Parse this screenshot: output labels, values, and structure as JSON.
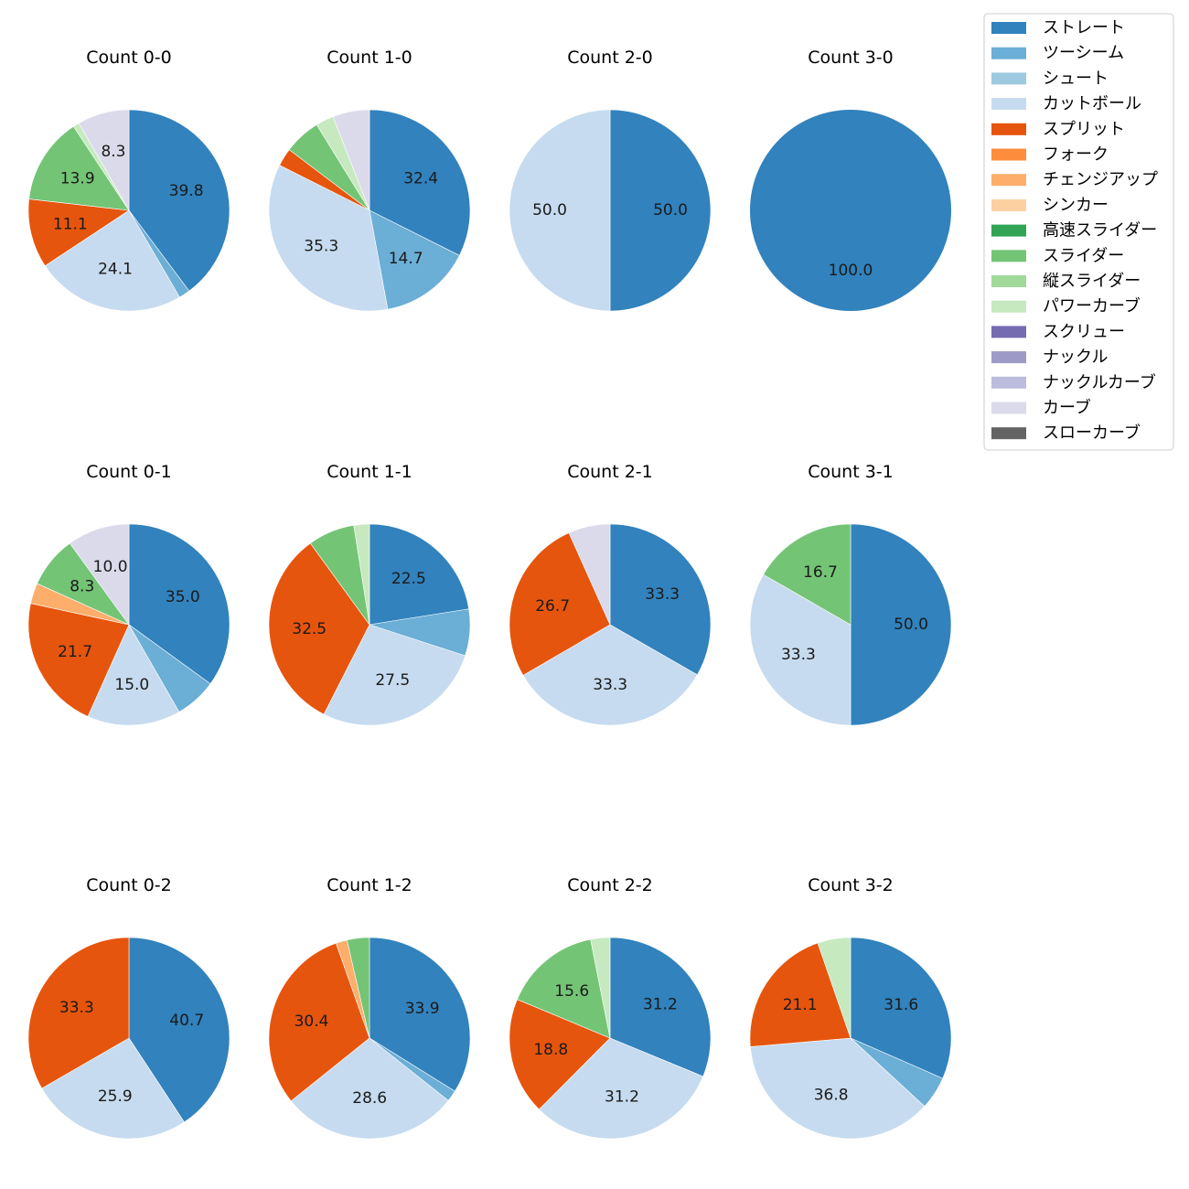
{
  "chart_data": {
    "type": "pie",
    "legend": {
      "placement": "top-right",
      "entries": [
        {
          "name": "ストレート",
          "color": "#3182bd"
        },
        {
          "name": "ツーシーム",
          "color": "#6baed6"
        },
        {
          "name": "シュート",
          "color": "#9ecae1"
        },
        {
          "name": "カットボール",
          "color": "#c6dbef"
        },
        {
          "name": "スプリット",
          "color": "#e6550d"
        },
        {
          "name": "フォーク",
          "color": "#fd8d3c"
        },
        {
          "name": "チェンジアップ",
          "color": "#fdae6b"
        },
        {
          "name": "シンカー",
          "color": "#fdd0a2"
        },
        {
          "name": "高速スライダー",
          "color": "#31a354"
        },
        {
          "name": "スライダー",
          "color": "#74c476"
        },
        {
          "name": "縦スライダー",
          "color": "#a1d99b"
        },
        {
          "name": "パワーカーブ",
          "color": "#c7e9c0"
        },
        {
          "name": "スクリュー",
          "color": "#756bb1"
        },
        {
          "name": "ナックル",
          "color": "#9e9ac8"
        },
        {
          "name": "ナックルカーブ",
          "color": "#bcbddc"
        },
        {
          "name": "カーブ",
          "color": "#dadaeb"
        },
        {
          "name": "スローカーブ",
          "color": "#636363"
        }
      ]
    },
    "pies": [
      {
        "title": "Count 0-0",
        "row": 0,
        "col": 0,
        "slices": [
          {
            "pitch": "ストレート",
            "value": 39.8,
            "label": "39.8"
          },
          {
            "pitch": "ツーシーム",
            "value": 1.8,
            "label": ""
          },
          {
            "pitch": "カットボール",
            "value": 24.1,
            "label": "24.1"
          },
          {
            "pitch": "スプリット",
            "value": 11.1,
            "label": "11.1"
          },
          {
            "pitch": "スライダー",
            "value": 13.9,
            "label": "13.9"
          },
          {
            "pitch": "パワーカーブ",
            "value": 1.0,
            "label": ""
          },
          {
            "pitch": "カーブ",
            "value": 8.3,
            "label": "8.3"
          }
        ]
      },
      {
        "title": "Count 1-0",
        "row": 0,
        "col": 1,
        "slices": [
          {
            "pitch": "ストレート",
            "value": 32.4,
            "label": "32.4"
          },
          {
            "pitch": "ツーシーム",
            "value": 14.7,
            "label": "14.7"
          },
          {
            "pitch": "カットボール",
            "value": 35.3,
            "label": "35.3"
          },
          {
            "pitch": "スプリット",
            "value": 2.9,
            "label": ""
          },
          {
            "pitch": "スライダー",
            "value": 5.9,
            "label": ""
          },
          {
            "pitch": "パワーカーブ",
            "value": 2.9,
            "label": ""
          },
          {
            "pitch": "カーブ",
            "value": 5.9,
            "label": ""
          }
        ]
      },
      {
        "title": "Count 2-0",
        "row": 0,
        "col": 2,
        "slices": [
          {
            "pitch": "ストレート",
            "value": 50.0,
            "label": "50.0"
          },
          {
            "pitch": "カットボール",
            "value": 50.0,
            "label": "50.0"
          }
        ]
      },
      {
        "title": "Count 3-0",
        "row": 0,
        "col": 3,
        "slices": [
          {
            "pitch": "ストレート",
            "value": 100.0,
            "label": "100.0"
          }
        ]
      },
      {
        "title": "Count 0-1",
        "row": 1,
        "col": 0,
        "slices": [
          {
            "pitch": "ストレート",
            "value": 35.0,
            "label": "35.0"
          },
          {
            "pitch": "ツーシーム",
            "value": 6.7,
            "label": ""
          },
          {
            "pitch": "カットボール",
            "value": 15.0,
            "label": "15.0"
          },
          {
            "pitch": "スプリット",
            "value": 21.7,
            "label": "21.7"
          },
          {
            "pitch": "チェンジアップ",
            "value": 3.3,
            "label": ""
          },
          {
            "pitch": "スライダー",
            "value": 8.3,
            "label": "8.3"
          },
          {
            "pitch": "カーブ",
            "value": 10.0,
            "label": "10.0"
          }
        ]
      },
      {
        "title": "Count 1-1",
        "row": 1,
        "col": 1,
        "slices": [
          {
            "pitch": "ストレート",
            "value": 22.5,
            "label": "22.5"
          },
          {
            "pitch": "ツーシーム",
            "value": 7.5,
            "label": ""
          },
          {
            "pitch": "カットボール",
            "value": 27.5,
            "label": "27.5"
          },
          {
            "pitch": "スプリット",
            "value": 32.5,
            "label": "32.5"
          },
          {
            "pitch": "スライダー",
            "value": 7.5,
            "label": ""
          },
          {
            "pitch": "パワーカーブ",
            "value": 2.5,
            "label": ""
          }
        ]
      },
      {
        "title": "Count 2-1",
        "row": 1,
        "col": 2,
        "slices": [
          {
            "pitch": "ストレート",
            "value": 33.3,
            "label": "33.3"
          },
          {
            "pitch": "カットボール",
            "value": 33.3,
            "label": "33.3"
          },
          {
            "pitch": "スプリット",
            "value": 26.7,
            "label": "26.7"
          },
          {
            "pitch": "カーブ",
            "value": 6.7,
            "label": ""
          }
        ]
      },
      {
        "title": "Count 3-1",
        "row": 1,
        "col": 3,
        "slices": [
          {
            "pitch": "ストレート",
            "value": 50.0,
            "label": "50.0"
          },
          {
            "pitch": "カットボール",
            "value": 33.3,
            "label": "33.3"
          },
          {
            "pitch": "スライダー",
            "value": 16.7,
            "label": "16.7"
          }
        ]
      },
      {
        "title": "Count 0-2",
        "row": 2,
        "col": 0,
        "slices": [
          {
            "pitch": "ストレート",
            "value": 40.7,
            "label": "40.7"
          },
          {
            "pitch": "カットボール",
            "value": 25.9,
            "label": "25.9"
          },
          {
            "pitch": "スプリット",
            "value": 33.3,
            "label": "33.3"
          }
        ]
      },
      {
        "title": "Count 1-2",
        "row": 2,
        "col": 1,
        "slices": [
          {
            "pitch": "ストレート",
            "value": 33.9,
            "label": "33.9"
          },
          {
            "pitch": "ツーシーム",
            "value": 1.8,
            "label": ""
          },
          {
            "pitch": "カットボール",
            "value": 28.6,
            "label": "28.6"
          },
          {
            "pitch": "スプリット",
            "value": 30.4,
            "label": "30.4"
          },
          {
            "pitch": "チェンジアップ",
            "value": 1.8,
            "label": ""
          },
          {
            "pitch": "スライダー",
            "value": 3.6,
            "label": ""
          }
        ]
      },
      {
        "title": "Count 2-2",
        "row": 2,
        "col": 2,
        "slices": [
          {
            "pitch": "ストレート",
            "value": 31.2,
            "label": "31.2"
          },
          {
            "pitch": "カットボール",
            "value": 31.2,
            "label": "31.2"
          },
          {
            "pitch": "スプリット",
            "value": 18.8,
            "label": "18.8"
          },
          {
            "pitch": "スライダー",
            "value": 15.6,
            "label": "15.6"
          },
          {
            "pitch": "パワーカーブ",
            "value": 3.1,
            "label": ""
          }
        ]
      },
      {
        "title": "Count 3-2",
        "row": 2,
        "col": 3,
        "slices": [
          {
            "pitch": "ストレート",
            "value": 31.6,
            "label": "31.6"
          },
          {
            "pitch": "ツーシーム",
            "value": 5.3,
            "label": ""
          },
          {
            "pitch": "カットボール",
            "value": 36.8,
            "label": "36.8"
          },
          {
            "pitch": "スプリット",
            "value": 21.1,
            "label": "21.1"
          },
          {
            "pitch": "パワーカーブ",
            "value": 5.3,
            "label": ""
          }
        ]
      }
    ]
  }
}
